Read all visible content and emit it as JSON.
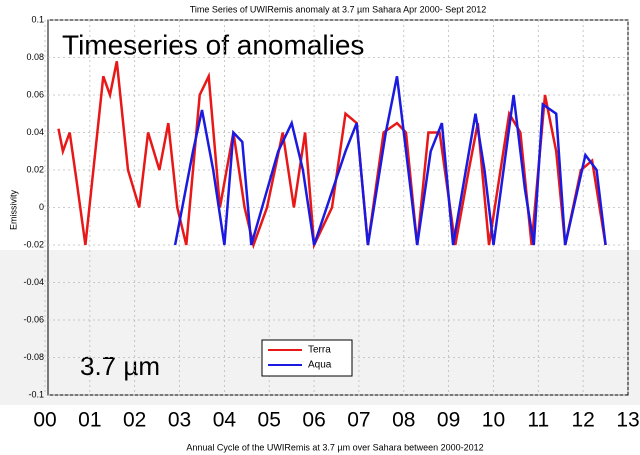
{
  "chart_data": {
    "type": "line",
    "title": "Time Series of UWIRemis anomaly at 3.7 µm Sahara Apr 2000- Sept 2012",
    "ylabel": "Emissivity",
    "annotations": [
      "Timeseries of anomalies",
      "3.7 µm"
    ],
    "caption": "Annual Cycle of the  UWIRemis at 3.7 µm over Sahara between 2000-2012",
    "xlim": [
      2000,
      2013
    ],
    "xticks": [
      {
        "value": 2000,
        "label": "00"
      },
      {
        "value": 2001,
        "label": "01"
      },
      {
        "value": 2002,
        "label": "02"
      },
      {
        "value": 2003,
        "label": "03"
      },
      {
        "value": 2004,
        "label": "04"
      },
      {
        "value": 2005,
        "label": "05"
      },
      {
        "value": 2006,
        "label": "06"
      },
      {
        "value": 2007,
        "label": "07"
      },
      {
        "value": 2008,
        "label": "08"
      },
      {
        "value": 2009,
        "label": "09"
      },
      {
        "value": 2010,
        "label": "10"
      },
      {
        "value": 2011,
        "label": "11"
      },
      {
        "value": 2012,
        "label": "12"
      },
      {
        "value": 2013,
        "label": "13"
      }
    ],
    "ylim": [
      -0.1,
      0.1
    ],
    "yticks": [
      0.1,
      0.08,
      0.06,
      0.04,
      0.02,
      0,
      -0.02,
      -0.04,
      -0.06,
      -0.08,
      -0.1
    ],
    "grid": true,
    "legend": "lower-right",
    "series": [
      {
        "name": "Terra",
        "color": "#e81818",
        "x": [
          2000.3,
          2000.4,
          2000.55,
          2000.7,
          2000.9,
          2001.3,
          2001.45,
          2001.6,
          2001.85,
          2002.1,
          2002.3,
          2002.55,
          2002.75,
          2002.95,
          2003.15,
          2003.45,
          2003.65,
          2003.9,
          2004.2,
          2004.45,
          2004.65,
          2004.95,
          2005.3,
          2005.55,
          2005.8,
          2006.0,
          2006.4,
          2006.7,
          2006.95,
          2007.2,
          2007.55,
          2007.85,
          2008.05,
          2008.3,
          2008.55,
          2008.8,
          2009.15,
          2009.45,
          2009.65,
          2009.9,
          2010.35,
          2010.6,
          2010.85,
          2011.15,
          2011.4,
          2011.6,
          2011.95,
          2012.2,
          2012.5
        ],
        "values": [
          0.042,
          0.03,
          0.04,
          0.015,
          -0.02,
          0.07,
          0.06,
          0.078,
          0.02,
          0.0,
          0.04,
          0.02,
          0.045,
          0.0,
          -0.02,
          0.06,
          0.07,
          0.0,
          0.04,
          0.0,
          -0.02,
          0.0,
          0.04,
          0.0,
          0.04,
          -0.02,
          0.0,
          0.05,
          0.045,
          -0.02,
          0.04,
          0.045,
          0.04,
          -0.02,
          0.04,
          0.04,
          -0.02,
          0.02,
          0.045,
          -0.02,
          0.05,
          0.04,
          -0.02,
          0.06,
          0.03,
          -0.02,
          0.02,
          0.025,
          -0.02
        ]
      },
      {
        "name": "Aqua",
        "color": "#1a1ae0",
        "x": [
          2002.9,
          2003.3,
          2003.5,
          2003.75,
          2004.0,
          2004.2,
          2004.4,
          2004.6,
          2005.2,
          2005.5,
          2005.75,
          2006.0,
          2006.7,
          2006.95,
          2007.2,
          2007.6,
          2007.85,
          2008.1,
          2008.3,
          2008.6,
          2008.85,
          2009.1,
          2009.6,
          2009.8,
          2010.0,
          2010.45,
          2010.7,
          2010.9,
          2011.1,
          2011.4,
          2011.6,
          2012.05,
          2012.3,
          2012.5
        ],
        "values": [
          -0.02,
          0.03,
          0.052,
          0.02,
          -0.02,
          0.04,
          0.035,
          -0.02,
          0.03,
          0.045,
          0.02,
          -0.02,
          0.03,
          0.045,
          -0.02,
          0.04,
          0.07,
          0.02,
          -0.02,
          0.03,
          0.045,
          -0.02,
          0.05,
          0.02,
          -0.02,
          0.06,
          0.01,
          -0.02,
          0.055,
          0.05,
          -0.02,
          0.028,
          0.02,
          -0.02
        ]
      }
    ]
  }
}
